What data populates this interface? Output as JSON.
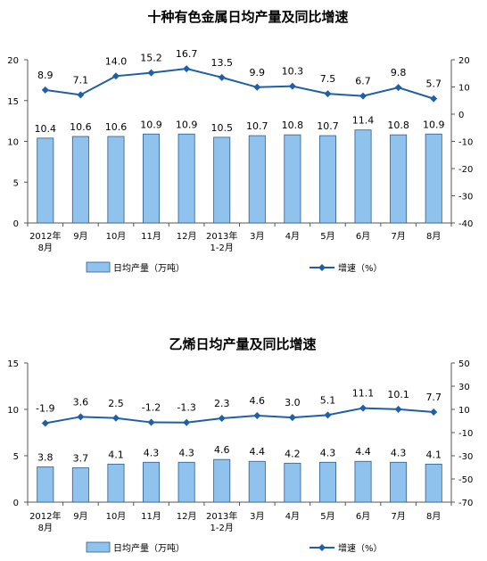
{
  "chart_data": [
    {
      "type": "bar",
      "title": "十种有色金属日均产量及同比增速",
      "categories": [
        [
          "2012年",
          "8月"
        ],
        [
          "9月"
        ],
        [
          "10月"
        ],
        [
          "11月"
        ],
        [
          "12月"
        ],
        [
          "2013年",
          "1-2月"
        ],
        [
          "3月"
        ],
        [
          "4月"
        ],
        [
          "5月"
        ],
        [
          "6月"
        ],
        [
          "7月"
        ],
        [
          "8月"
        ]
      ],
      "series": [
        {
          "name": "日均产量（万吨）",
          "kind": "bar",
          "axis": "left",
          "values": [
            10.4,
            10.6,
            10.6,
            10.9,
            10.9,
            10.5,
            10.7,
            10.8,
            10.7,
            11.4,
            10.8,
            10.9
          ]
        },
        {
          "name": "增速（%）",
          "kind": "line",
          "axis": "right",
          "values": [
            8.9,
            7.1,
            14.0,
            15.2,
            16.7,
            13.5,
            9.9,
            10.3,
            7.5,
            6.7,
            9.8,
            5.7
          ]
        }
      ],
      "ylim": [
        0,
        20
      ],
      "yticks": [
        0,
        5,
        10,
        15,
        20
      ],
      "y2lim": [
        -40,
        20
      ],
      "y2ticks": [
        -40,
        -30,
        -20,
        -10,
        0,
        10,
        20
      ],
      "legend_position": "bottom",
      "grid": false
    },
    {
      "type": "bar",
      "title": "乙烯日均产量及同比增速",
      "categories": [
        [
          "2012年",
          "8月"
        ],
        [
          "9月"
        ],
        [
          "10月"
        ],
        [
          "11月"
        ],
        [
          "12月"
        ],
        [
          "2013年",
          "1-2月"
        ],
        [
          "3月"
        ],
        [
          "4月"
        ],
        [
          "5月"
        ],
        [
          "6月"
        ],
        [
          "7月"
        ],
        [
          "8月"
        ]
      ],
      "series": [
        {
          "name": "日均产量（万吨）",
          "kind": "bar",
          "axis": "left",
          "values": [
            3.8,
            3.7,
            4.1,
            4.3,
            4.3,
            4.6,
            4.4,
            4.2,
            4.3,
            4.4,
            4.3,
            4.1
          ]
        },
        {
          "name": "增速（%）",
          "kind": "line",
          "axis": "right",
          "values": [
            -1.9,
            3.6,
            2.5,
            -1.2,
            -1.3,
            2.3,
            4.6,
            3.0,
            5.1,
            11.1,
            10.1,
            7.7
          ]
        }
      ],
      "ylim": [
        0,
        15
      ],
      "yticks": [
        0,
        5,
        10,
        15
      ],
      "y2lim": [
        -70,
        50
      ],
      "y2ticks": [
        -70,
        -50,
        -30,
        -10,
        10,
        30,
        50
      ],
      "legend_position": "bottom",
      "grid": false
    }
  ],
  "colors": {
    "bar_fill": "#8fc3ee",
    "bar_stroke": "#2f5d8a",
    "line": "#1f5fa8",
    "axis": "#555555"
  }
}
